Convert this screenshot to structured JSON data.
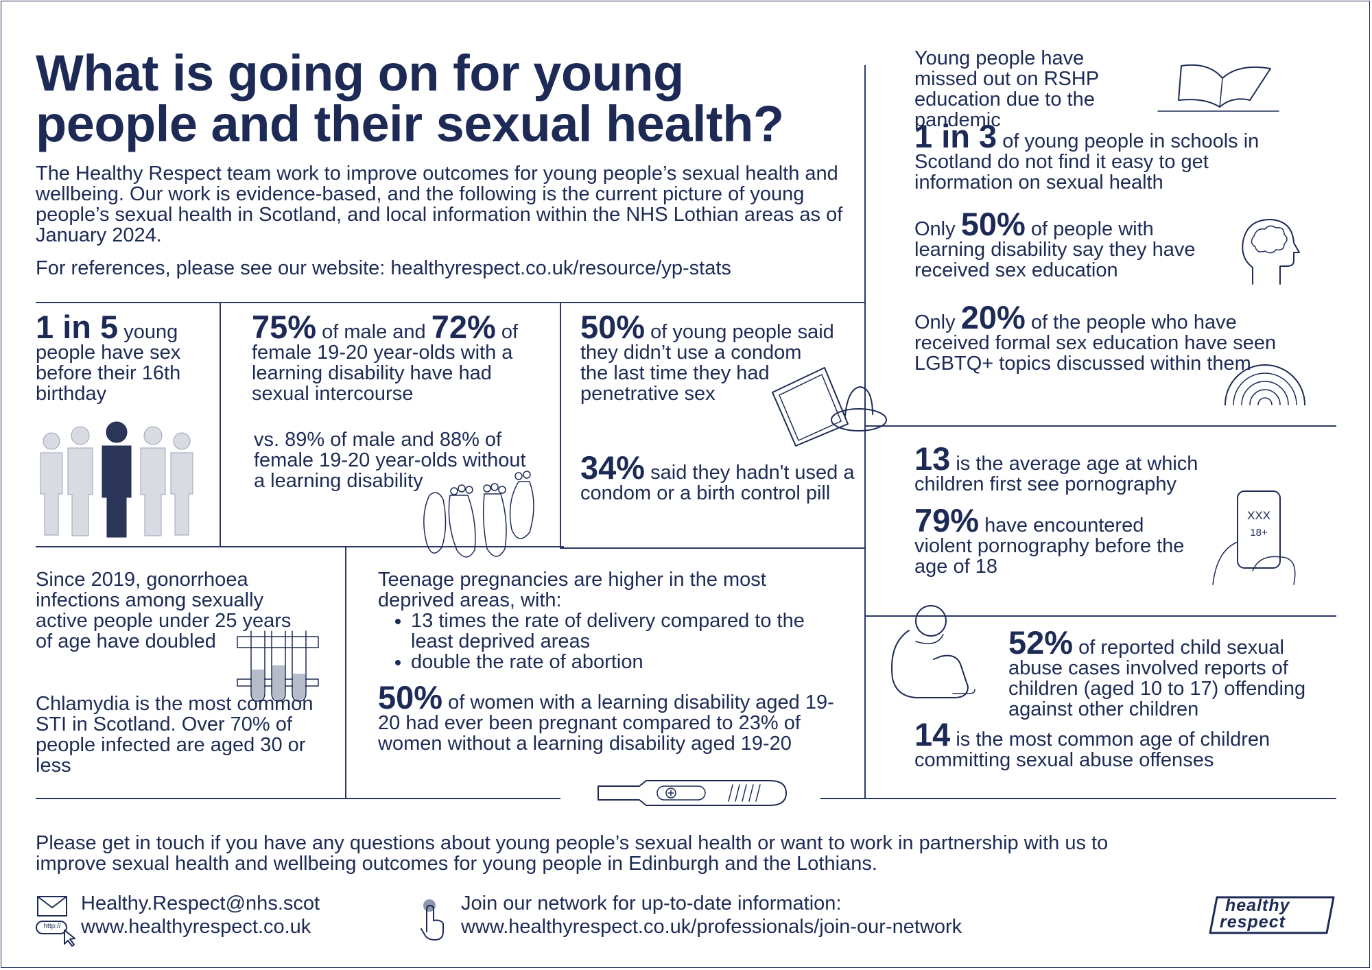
{
  "header": {
    "title": "What is going on for young people and their sexual health?",
    "intro": "The Healthy Respect team work to improve outcomes for young people’s sexual health and wellbeing. Our work is evidence-based, and the following is the current picture of young people’s sexual health in Scotland, and local information within the NHS Lothian areas as of January 2024.",
    "references": "For references, please see our website: healthyrespect.co.uk/resource/yp-stats"
  },
  "stats": {
    "sex_before_16": {
      "figure": "1 in 5",
      "text": " young people have sex before their 16th birthday"
    },
    "learning_disability": {
      "fig1": "75%",
      "mid": " of male and ",
      "fig2": "72%",
      "text": " of female 19-20 year-olds with a learning disability have had sexual intercourse",
      "comparison": "vs. 89% of male and 88% of female 19-20 year-olds without a learning disability"
    },
    "condom": {
      "figure": "50%",
      "text": " of young people said they didn’t use a condom the last time they had penetrative sex"
    },
    "condom_pill": {
      "figure": "34%",
      "text": " said they hadn't used a condom or a birth control pill"
    },
    "gonorrhoea": "Since 2019, gonorrhoea infections among sexually active people under 25 years of age have doubled",
    "chlamydia": "Chlamydia is the most common STI in Scotland. Over 70% of people infected are aged 30 or less",
    "teen_pregnancy": {
      "intro": "Teenage pregnancies are higher in the most deprived areas, with:",
      "bullets": [
        "13 times the rate of delivery compared to the least deprived areas",
        "double the rate of abortion"
      ]
    },
    "pregnant": {
      "figure": "50%",
      "text": " of women with a learning disability aged 19-20 had ever been pregnant compared to 23% of women without a learning disability aged 19-20"
    },
    "rshp": "Young people have missed out on RSHP education due to the pandemic",
    "info": {
      "figure": "1 in 3",
      "text": " of young people in schools in Scotland do not find it easy to get information on sexual health"
    },
    "sex_ed": {
      "pre": "Only ",
      "figure": "50%",
      "text": " of people with learning disability say they have received sex education"
    },
    "lgbtq": {
      "pre": "Only ",
      "figure": "20%",
      "text": " of the people who have received formal sex education have seen LGBTQ+ topics discussed within them"
    },
    "porn_age": {
      "figure": "13",
      "text": " is the average age at which children first see pornography"
    },
    "violent_porn": {
      "figure": "79%",
      "text": " have encountered violent pornography before the age of 18"
    },
    "phone_screen": {
      "line1": "XXX",
      "line2": "18+"
    },
    "child_abuse": {
      "figure": "52%",
      "text": " of reported child sexual abuse cases involved reports of children (aged 10 to 17) offending against other children"
    },
    "abuse_age": {
      "figure": "14",
      "text": " is the most common age of children committing sexual abuse offenses"
    }
  },
  "footer": {
    "contact_text": "Please get in touch if you have any questions about young people’s sexual health or want to work in partnership with us to improve sexual health and wellbeing outcomes for young people in Edinburgh and the Lothians.",
    "email": "Healthy.Respect@nhs.scot",
    "website": "www.healthyrespect.co.uk",
    "http_label": "http://",
    "network_label": "Join our network for up-to-date information:",
    "network_url": "www.healthyrespect.co.uk/professionals/join-our-network",
    "logo_line1": "healthy",
    "logo_line2": "respect"
  },
  "colors": {
    "ink": "#1d2a55",
    "line": "#2a3766",
    "background": "#ffffff"
  }
}
